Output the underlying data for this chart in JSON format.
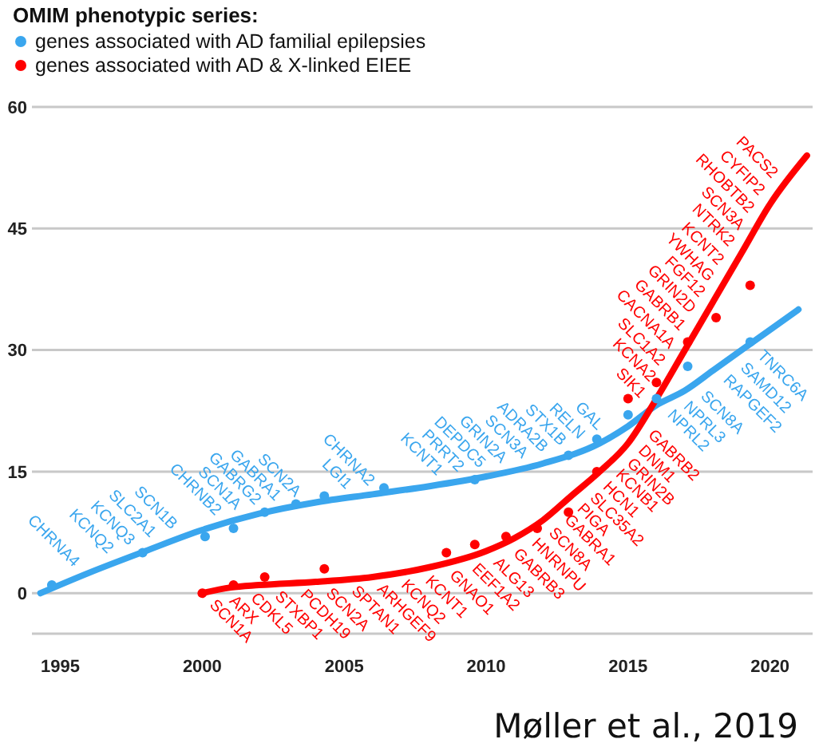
{
  "chart_data": {
    "type": "scatter",
    "legend_title": "OMIM phenotypic series:",
    "legend": "top left",
    "grid": "y",
    "xlim": [
      1994,
      2021.5
    ],
    "xticks": [
      1995,
      2000,
      2005,
      2010,
      2015,
      2020
    ],
    "ylim": [
      -5,
      60
    ],
    "yticks": [
      0,
      15,
      30,
      45,
      60
    ],
    "series": [
      {
        "type": "line",
        "color": "#3aa6ee",
        "marker": "none",
        "x": [
          1994.3,
          1996,
          1998,
          2000,
          2002,
          2004,
          2006,
          2008,
          2010,
          2012,
          2014,
          2015,
          2016,
          2017,
          2018,
          2019,
          2020,
          2021
        ],
        "values": [
          0,
          2.5,
          5.2,
          7.8,
          9.8,
          11.2,
          12.2,
          13.2,
          14.4,
          16,
          18.5,
          20.6,
          23.2,
          25,
          27.5,
          30,
          32.5,
          35
        ]
      },
      {
        "type": "line",
        "color": "#ff0000",
        "marker": "none",
        "x": [
          2000,
          2001,
          2002,
          2004,
          2006,
          2008,
          2010,
          2011,
          2012,
          2013,
          2014,
          2015,
          2016,
          2017,
          2018,
          2019,
          2020,
          2021.3
        ],
        "values": [
          0,
          0.7,
          1,
          1.4,
          2,
          3.2,
          5.2,
          6.8,
          9,
          12,
          15,
          18.5,
          24,
          30,
          36,
          42,
          48,
          54
        ]
      },
      {
        "name": "genes associated with AD familial epilepsies",
        "color": "#3aa6ee",
        "marker": "circle",
        "x": [
          1994.7,
          1997.9,
          2000.1,
          2001.1,
          2002.2,
          2003.3,
          2004.3,
          2006.4,
          2009.6,
          2012.9,
          2013.9,
          2015,
          2016,
          2017.1,
          2019.3
        ],
        "values": [
          1,
          5,
          7,
          8,
          10,
          11,
          12,
          13,
          14,
          17,
          19,
          22,
          24,
          28,
          31
        ]
      },
      {
        "name": "genes associated with AD & X-linked EIEE",
        "color": "#ff0000",
        "marker": "circle",
        "x": [
          2000,
          2001.1,
          2002.2,
          2004.3,
          2008.6,
          2009.6,
          2010.7,
          2011.8,
          2012.9,
          2013.9,
          2015,
          2016,
          2017.1,
          2018.1,
          2019.3
        ],
        "values": [
          0,
          1,
          2,
          3,
          5,
          6,
          7,
          8,
          10,
          15,
          24,
          26,
          31,
          34,
          38
        ]
      }
    ],
    "annotations": [
      "Møller et al., 2019",
      {
        "text": "CHRNA4",
        "x": 1995.9,
        "y": 2.35
      },
      {
        "text": "KCNQ2",
        "x": 1997.1,
        "y": 3.99
      },
      {
        "text": "KCNQ3",
        "x": 1997.85,
        "y": 5.0
      },
      {
        "text": "SLC2A1",
        "x": 1998.6,
        "y": 5.98
      },
      {
        "text": "SCN1B",
        "x": 1999.35,
        "y": 6.96
      },
      {
        "text": "CHRNB2",
        "x": 2000.9,
        "y": 8.7
      },
      {
        "text": "SCN1A",
        "x": 2001.6,
        "y": 9.4
      },
      {
        "text": "GABRG2",
        "x": 2002.3,
        "y": 10.01
      },
      {
        "text": "GABRA1",
        "x": 2003.0,
        "y": 10.5
      },
      {
        "text": "SCN2A",
        "x": 2003.7,
        "y": 10.99
      },
      {
        "text": "LGI1",
        "x": 2005.5,
        "y": 11.95
      },
      {
        "text": "CHRNA2",
        "x": 2006.3,
        "y": 12.35
      },
      {
        "text": "KCNT1",
        "x": 2008.7,
        "y": 13.62
      },
      {
        "text": "PRRT2",
        "x": 2009.45,
        "y": 14.07
      },
      {
        "text": "DEPDC5",
        "x": 2010.2,
        "y": 14.56
      },
      {
        "text": "GRIN2A",
        "x": 2010.95,
        "y": 15.16
      },
      {
        "text": "SCN3A",
        "x": 2011.7,
        "y": 15.76
      },
      {
        "text": "ADRA2B",
        "x": 2012.4,
        "y": 16.5
      },
      {
        "text": "STX1B",
        "x": 2013.05,
        "y": 17.31
      },
      {
        "text": "RELN",
        "x": 2013.7,
        "y": 18.13
      },
      {
        "text": "GAL",
        "x": 2014.35,
        "y": 19.24
      },
      {
        "text": "NPRL2",
        "x": 2016.13,
        "y": 23.43
      },
      {
        "text": "NPRL3",
        "x": 2016.7,
        "y": 24.46
      },
      {
        "text": "SCN8A",
        "x": 2017.3,
        "y": 25.75
      },
      {
        "text": "RAPGEF2",
        "x": 2018.1,
        "y": 27.75
      },
      {
        "text": "SAMD12",
        "x": 2018.7,
        "y": 29.25
      },
      {
        "text": "TNRC6A",
        "x": 2019.3,
        "y": 30.75
      },
      {
        "text": "SCN1A",
        "x": 2000.0,
        "y": 0
      },
      {
        "text": "ARX",
        "x": 2000.7,
        "y": 0.49
      },
      {
        "text": "CDKL5",
        "x": 2001.45,
        "y": 0.84
      },
      {
        "text": "STXBP1",
        "x": 2002.3,
        "y": 1.06
      },
      {
        "text": "PCDH19",
        "x": 2003.2,
        "y": 1.24
      },
      {
        "text": "SCN2A",
        "x": 2004.1,
        "y": 1.43
      },
      {
        "text": "SPTAN1",
        "x": 2005.0,
        "y": 1.7
      },
      {
        "text": "ARHGEF9",
        "x": 2005.9,
        "y": 1.97
      },
      {
        "text": "KCNQ2",
        "x": 2006.75,
        "y": 2.45
      },
      {
        "text": "KCNT1",
        "x": 2007.6,
        "y": 2.96
      },
      {
        "text": "GNAO1",
        "x": 2008.45,
        "y": 3.65
      },
      {
        "text": "EEF1A2",
        "x": 2009.25,
        "y": 4.45
      },
      {
        "text": "ALG13",
        "x": 2010.0,
        "y": 5.2
      },
      {
        "text": "GABRB3",
        "x": 2010.7,
        "y": 6.32
      },
      {
        "text": "HNRNPU",
        "x": 2011.35,
        "y": 7.57
      },
      {
        "text": "SCN8A",
        "x": 2011.95,
        "y": 8.89
      },
      {
        "text": "GABRA1",
        "x": 2012.5,
        "y": 10.5
      },
      {
        "text": "PIGA",
        "x": 2012.95,
        "y": 11.85
      },
      {
        "text": "SLC35A2",
        "x": 2013.4,
        "y": 13.2
      },
      {
        "text": "HCN1",
        "x": 2013.86,
        "y": 14.58
      },
      {
        "text": "KCNB1",
        "x": 2014.31,
        "y": 16.09
      },
      {
        "text": "GRIN2B",
        "x": 2014.7,
        "y": 17.45
      },
      {
        "text": "DNM1",
        "x": 2015.1,
        "y": 19.05
      },
      {
        "text": "GABRB2",
        "x": 2015.45,
        "y": 20.98
      },
      {
        "text": "SIK1",
        "x": 2015.85,
        "y": 23.18
      },
      {
        "text": "KCNA2",
        "x": 2016.2,
        "y": 25.2
      },
      {
        "text": "SLC1A2",
        "x": 2016.53,
        "y": 27.18
      },
      {
        "text": "CACNA1A",
        "x": 2016.88,
        "y": 29.28
      },
      {
        "text": "GABRB1",
        "x": 2017.25,
        "y": 31.5
      },
      {
        "text": "GRIN2D",
        "x": 2017.61,
        "y": 33.66
      },
      {
        "text": "FGF12",
        "x": 2017.94,
        "y": 35.64
      },
      {
        "text": "YWHAG",
        "x": 2018.26,
        "y": 37.56
      },
      {
        "text": "KCNT2",
        "x": 2018.6,
        "y": 39.6
      },
      {
        "text": "NTRK2",
        "x": 2018.98,
        "y": 41.88
      },
      {
        "text": "SCN3A",
        "x": 2019.32,
        "y": 43.92
      },
      {
        "text": "RHOBTB2",
        "x": 2019.67,
        "y": 46.02
      },
      {
        "text": "CYFIP2",
        "x": 2020.04,
        "y": 48.18
      },
      {
        "text": "PACS2",
        "x": 2020.5,
        "y": 50.31
      }
    ]
  }
}
